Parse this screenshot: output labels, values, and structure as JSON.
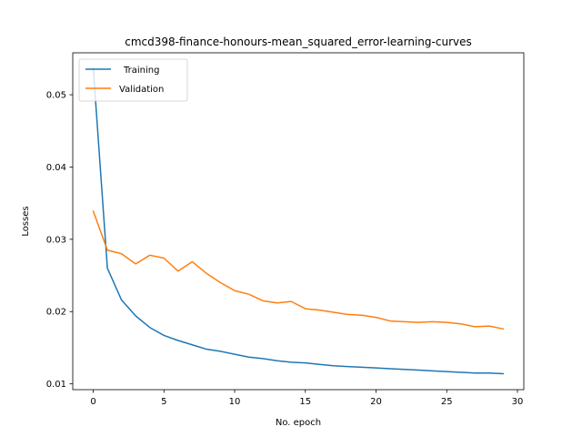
{
  "chart_data": {
    "type": "line",
    "title": "cmcd398-finance-honours-mean_squared_error-learning-curves",
    "xlabel": "No. epoch",
    "ylabel": "Losses",
    "x": [
      0,
      1,
      2,
      3,
      4,
      5,
      6,
      7,
      8,
      9,
      10,
      11,
      12,
      13,
      14,
      15,
      16,
      17,
      18,
      19,
      20,
      21,
      22,
      23,
      24,
      25,
      26,
      27,
      28,
      29
    ],
    "xlim": [
      -1.45,
      30.45
    ],
    "ylim": [
      0.0092,
      0.0558
    ],
    "xticks": [
      0,
      5,
      10,
      15,
      20,
      25,
      30
    ],
    "yticks": [
      0.01,
      0.02,
      0.03,
      0.04,
      0.05
    ],
    "xtick_labels": [
      "0",
      "5",
      "10",
      "15",
      "20",
      "25",
      "30"
    ],
    "ytick_labels": [
      "0.01",
      "0.02",
      "0.03",
      "0.04",
      "0.05"
    ],
    "grid": false,
    "legend_position": "top-left",
    "series": [
      {
        "name": "Training",
        "color": "#1f77b4",
        "values": [
          0.0537,
          0.026,
          0.0216,
          0.0194,
          0.0178,
          0.0167,
          0.016,
          0.0154,
          0.0148,
          0.0145,
          0.0141,
          0.0137,
          0.0135,
          0.0132,
          0.013,
          0.0129,
          0.0127,
          0.0125,
          0.0124,
          0.0123,
          0.0122,
          0.0121,
          0.012,
          0.0119,
          0.0118,
          0.0117,
          0.0116,
          0.0115,
          0.0115,
          0.0114
        ]
      },
      {
        "name": "Validation",
        "color": "#ff7f0e",
        "values": [
          0.0339,
          0.0285,
          0.028,
          0.0266,
          0.0278,
          0.0274,
          0.0256,
          0.0269,
          0.0253,
          0.024,
          0.0229,
          0.0224,
          0.0215,
          0.0212,
          0.0214,
          0.0204,
          0.0202,
          0.0199,
          0.0196,
          0.0195,
          0.0192,
          0.0187,
          0.0186,
          0.0185,
          0.0186,
          0.0185,
          0.0183,
          0.0179,
          0.018,
          0.0176
        ]
      }
    ]
  }
}
